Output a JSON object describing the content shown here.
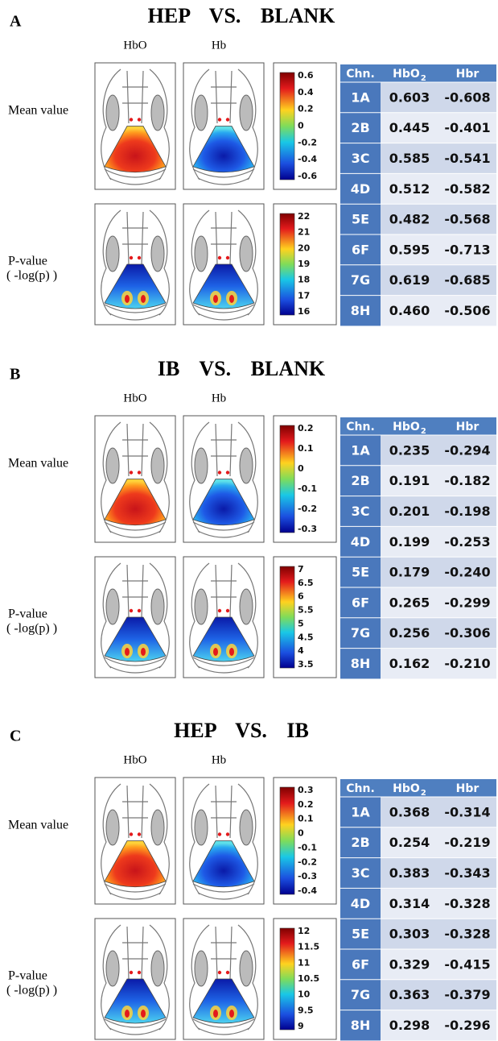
{
  "panels": [
    {
      "label": "A",
      "title": "HEP VS. BLANK",
      "columns": [
        "HbO",
        "Hb"
      ],
      "mean_label": "Mean value",
      "p_label": [
        "P-value",
        "( -log(p) )"
      ],
      "mean_colorbar": [
        "0.6",
        "0.4",
        "0.2",
        "0",
        "-0.2",
        "-0.4",
        "-0.6"
      ],
      "p_colorbar": [
        "22",
        "21",
        "20",
        "19",
        "18",
        "17",
        "16"
      ],
      "table": {
        "header": [
          "Chn.",
          "HbO",
          "Hbr"
        ],
        "header_sub": "2",
        "rows": [
          [
            "1A",
            "0.603",
            "-0.608"
          ],
          [
            "2B",
            "0.445",
            "-0.401"
          ],
          [
            "3C",
            "0.585",
            "-0.541"
          ],
          [
            "4D",
            "0.512",
            "-0.582"
          ],
          [
            "5E",
            "0.482",
            "-0.568"
          ],
          [
            "6F",
            "0.595",
            "-0.713"
          ],
          [
            "7G",
            "0.619",
            "-0.685"
          ],
          [
            "8H",
            "0.460",
            "-0.506"
          ]
        ]
      }
    },
    {
      "label": "B",
      "title": "IB VS. BLANK",
      "columns": [
        "HbO",
        "Hb"
      ],
      "mean_label": "Mean value",
      "p_label": [
        "P-value",
        "( -log(p) )"
      ],
      "mean_colorbar": [
        "0.2",
        "0.1",
        "0",
        "-0.1",
        "-0.2",
        "-0.3"
      ],
      "p_colorbar": [
        "7",
        "6.5",
        "6",
        "5.5",
        "5",
        "4.5",
        "4",
        "3.5"
      ],
      "table": {
        "header": [
          "Chn.",
          "HbO",
          "Hbr"
        ],
        "header_sub": "2",
        "rows": [
          [
            "1A",
            "0.235",
            "-0.294"
          ],
          [
            "2B",
            "0.191",
            "-0.182"
          ],
          [
            "3C",
            "0.201",
            "-0.198"
          ],
          [
            "4D",
            "0.199",
            "-0.253"
          ],
          [
            "5E",
            "0.179",
            "-0.240"
          ],
          [
            "6F",
            "0.265",
            "-0.299"
          ],
          [
            "7G",
            "0.256",
            "-0.306"
          ],
          [
            "8H",
            "0.162",
            "-0.210"
          ]
        ]
      }
    },
    {
      "label": "C",
      "title": "HEP VS. IB",
      "columns": [
        "HbO",
        "Hb"
      ],
      "mean_label": "Mean value",
      "p_label": [
        "P-value",
        "( -log(p) )"
      ],
      "mean_colorbar": [
        "0.3",
        "0.2",
        "0.1",
        "0",
        "-0.1",
        "-0.2",
        "-0.3",
        "-0.4"
      ],
      "p_colorbar": [
        "12",
        "11.5",
        "11",
        "10.5",
        "10",
        "9.5",
        "9"
      ],
      "table": {
        "header": [
          "Chn.",
          "HbO",
          "Hbr"
        ],
        "header_sub": "2",
        "rows": [
          [
            "1A",
            "0.368",
            "-0.314"
          ],
          [
            "2B",
            "0.254",
            "-0.219"
          ],
          [
            "3C",
            "0.383",
            "-0.343"
          ],
          [
            "4D",
            "0.314",
            "-0.328"
          ],
          [
            "5E",
            "0.303",
            "-0.328"
          ],
          [
            "6F",
            "0.329",
            "-0.415"
          ],
          [
            "7G",
            "0.363",
            "-0.379"
          ],
          [
            "8H",
            "0.298",
            "-0.296"
          ]
        ]
      }
    }
  ]
}
